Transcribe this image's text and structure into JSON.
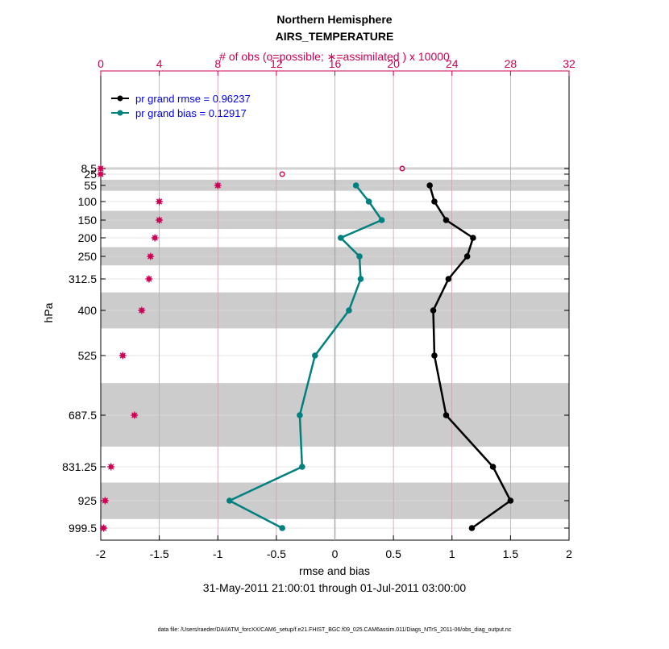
{
  "chart_data": {
    "type": "line",
    "title": "Northern Hemisphere",
    "subtitle": "AIRS_TEMPERATURE",
    "top_axis_label": "# of obs (o=possible; ∗=assimilated ) x 10000",
    "xlabel": "rmse and bias",
    "ylabel": "hPa",
    "date_range": "31-May-2011 21:00:01 through 01-Jul-2011 03:00:00",
    "footer": "data file: /Users/raeder/DAI/ATM_forcXX/CAM6_setup/f.e21.FHIST_BGC.f09_025.CAM6assim.011/Diags_NTrS_2011-06/obs_diag_output.nc",
    "xlim": [
      -2,
      2
    ],
    "x_ticks": [
      -2,
      -1.5,
      -1,
      -0.5,
      0,
      0.5,
      1,
      1.5,
      2
    ],
    "x_tick_labels": [
      "-2",
      "-1.5",
      "-1",
      "-0.5",
      "0",
      "0.5",
      "1",
      "1.5",
      "2"
    ],
    "top_xlim": [
      0,
      32
    ],
    "top_ticks": [
      0,
      4,
      8,
      12,
      16,
      20,
      24,
      28,
      32
    ],
    "top_tick_labels": [
      "0",
      "4",
      "8",
      "12",
      "16",
      "20",
      "24",
      "28",
      "32"
    ],
    "levels": [
      8.5,
      25,
      55,
      100,
      150,
      200,
      250,
      312.5,
      400,
      525,
      687.5,
      831.25,
      925,
      999.5
    ],
    "level_labels": [
      "8.5",
      "25",
      "55",
      "100",
      "150",
      "200",
      "250",
      "312.5",
      "400",
      "525",
      "687.5",
      "831.25",
      "925",
      "999.5"
    ],
    "shaded_bands": [
      [
        5,
        12
      ],
      [
        40,
        70
      ],
      [
        125,
        175
      ],
      [
        225,
        275
      ],
      [
        350,
        450
      ],
      [
        600,
        775
      ],
      [
        875,
        975
      ]
    ],
    "legend": [
      "pr grand rmse = 0.96237",
      "pr grand bias = 0.12917"
    ],
    "colors": {
      "rmse": "#000000",
      "bias": "#00807f",
      "obs": "#cc0055",
      "band": "#cccccc",
      "legend_text": "#0000ee",
      "grid": "#dddddd",
      "top_grid": "#c98aa0"
    },
    "series": [
      {
        "name": "rmse",
        "values": [
          null,
          null,
          0.81,
          0.85,
          0.95,
          1.18,
          1.13,
          0.97,
          0.84,
          0.85,
          0.95,
          1.35,
          1.5,
          1.17
        ]
      },
      {
        "name": "bias",
        "values": [
          null,
          null,
          0.18,
          0.29,
          0.4,
          0.05,
          0.21,
          0.22,
          0.12,
          -0.17,
          -0.3,
          -0.28,
          -0.9,
          -0.45
        ]
      },
      {
        "name": "obs_possible",
        "values": [
          20.6,
          12.4,
          null,
          null,
          null,
          null,
          null,
          null,
          null,
          null,
          null,
          null,
          null,
          null
        ]
      },
      {
        "name": "obs_assimilated",
        "values": [
          0,
          0,
          8,
          4,
          4,
          3.7,
          3.4,
          3.3,
          2.8,
          1.5,
          2.3,
          0.7,
          0.3,
          0.2
        ]
      }
    ]
  }
}
